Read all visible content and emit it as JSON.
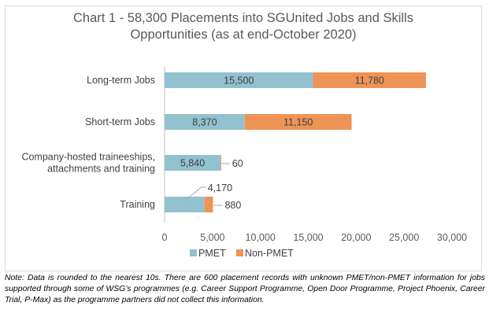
{
  "chart_data": {
    "type": "bar",
    "orientation": "horizontal",
    "stacked": true,
    "title_lines": [
      "Chart 1 - 58,300 Placements into SGUnited Jobs and Skills",
      "Opportunities (as at end-October 2020)"
    ],
    "categories": [
      [
        "Long-term Jobs"
      ],
      [
        "Short-term Jobs"
      ],
      [
        "Company-hosted traineeships,",
        "attachments and training"
      ],
      [
        "Training"
      ]
    ],
    "series": [
      {
        "name": "PMET",
        "color": "#92c1cf",
        "values": [
          15500,
          8370,
          5840,
          4170
        ],
        "labels": [
          "15,500",
          "8,370",
          "5,840",
          "4,170"
        ]
      },
      {
        "name": "Non-PMET",
        "color": "#ed9456",
        "values": [
          11780,
          11150,
          60,
          880
        ],
        "labels": [
          "11,780",
          "11,150",
          "60",
          "880"
        ]
      }
    ],
    "xlim": [
      0,
      30000
    ],
    "x_ticks": [
      0,
      5000,
      10000,
      15000,
      20000,
      25000,
      30000
    ],
    "x_tick_labels": [
      "0",
      "5,000",
      "10,000",
      "15,000",
      "20,000",
      "25,000",
      "30,000"
    ],
    "grid": false,
    "legend_position": "bottom"
  },
  "note": "Note: Data is rounded to the nearest 10s. There are 600 placement records with unknown PMET/non-PMET information for jobs supported through some of WSG’s programmes (e.g. Career Support Programme, Open Door Programme, Project Phoenix, Career Trial, P-Max) as the programme partners did not collect this information."
}
